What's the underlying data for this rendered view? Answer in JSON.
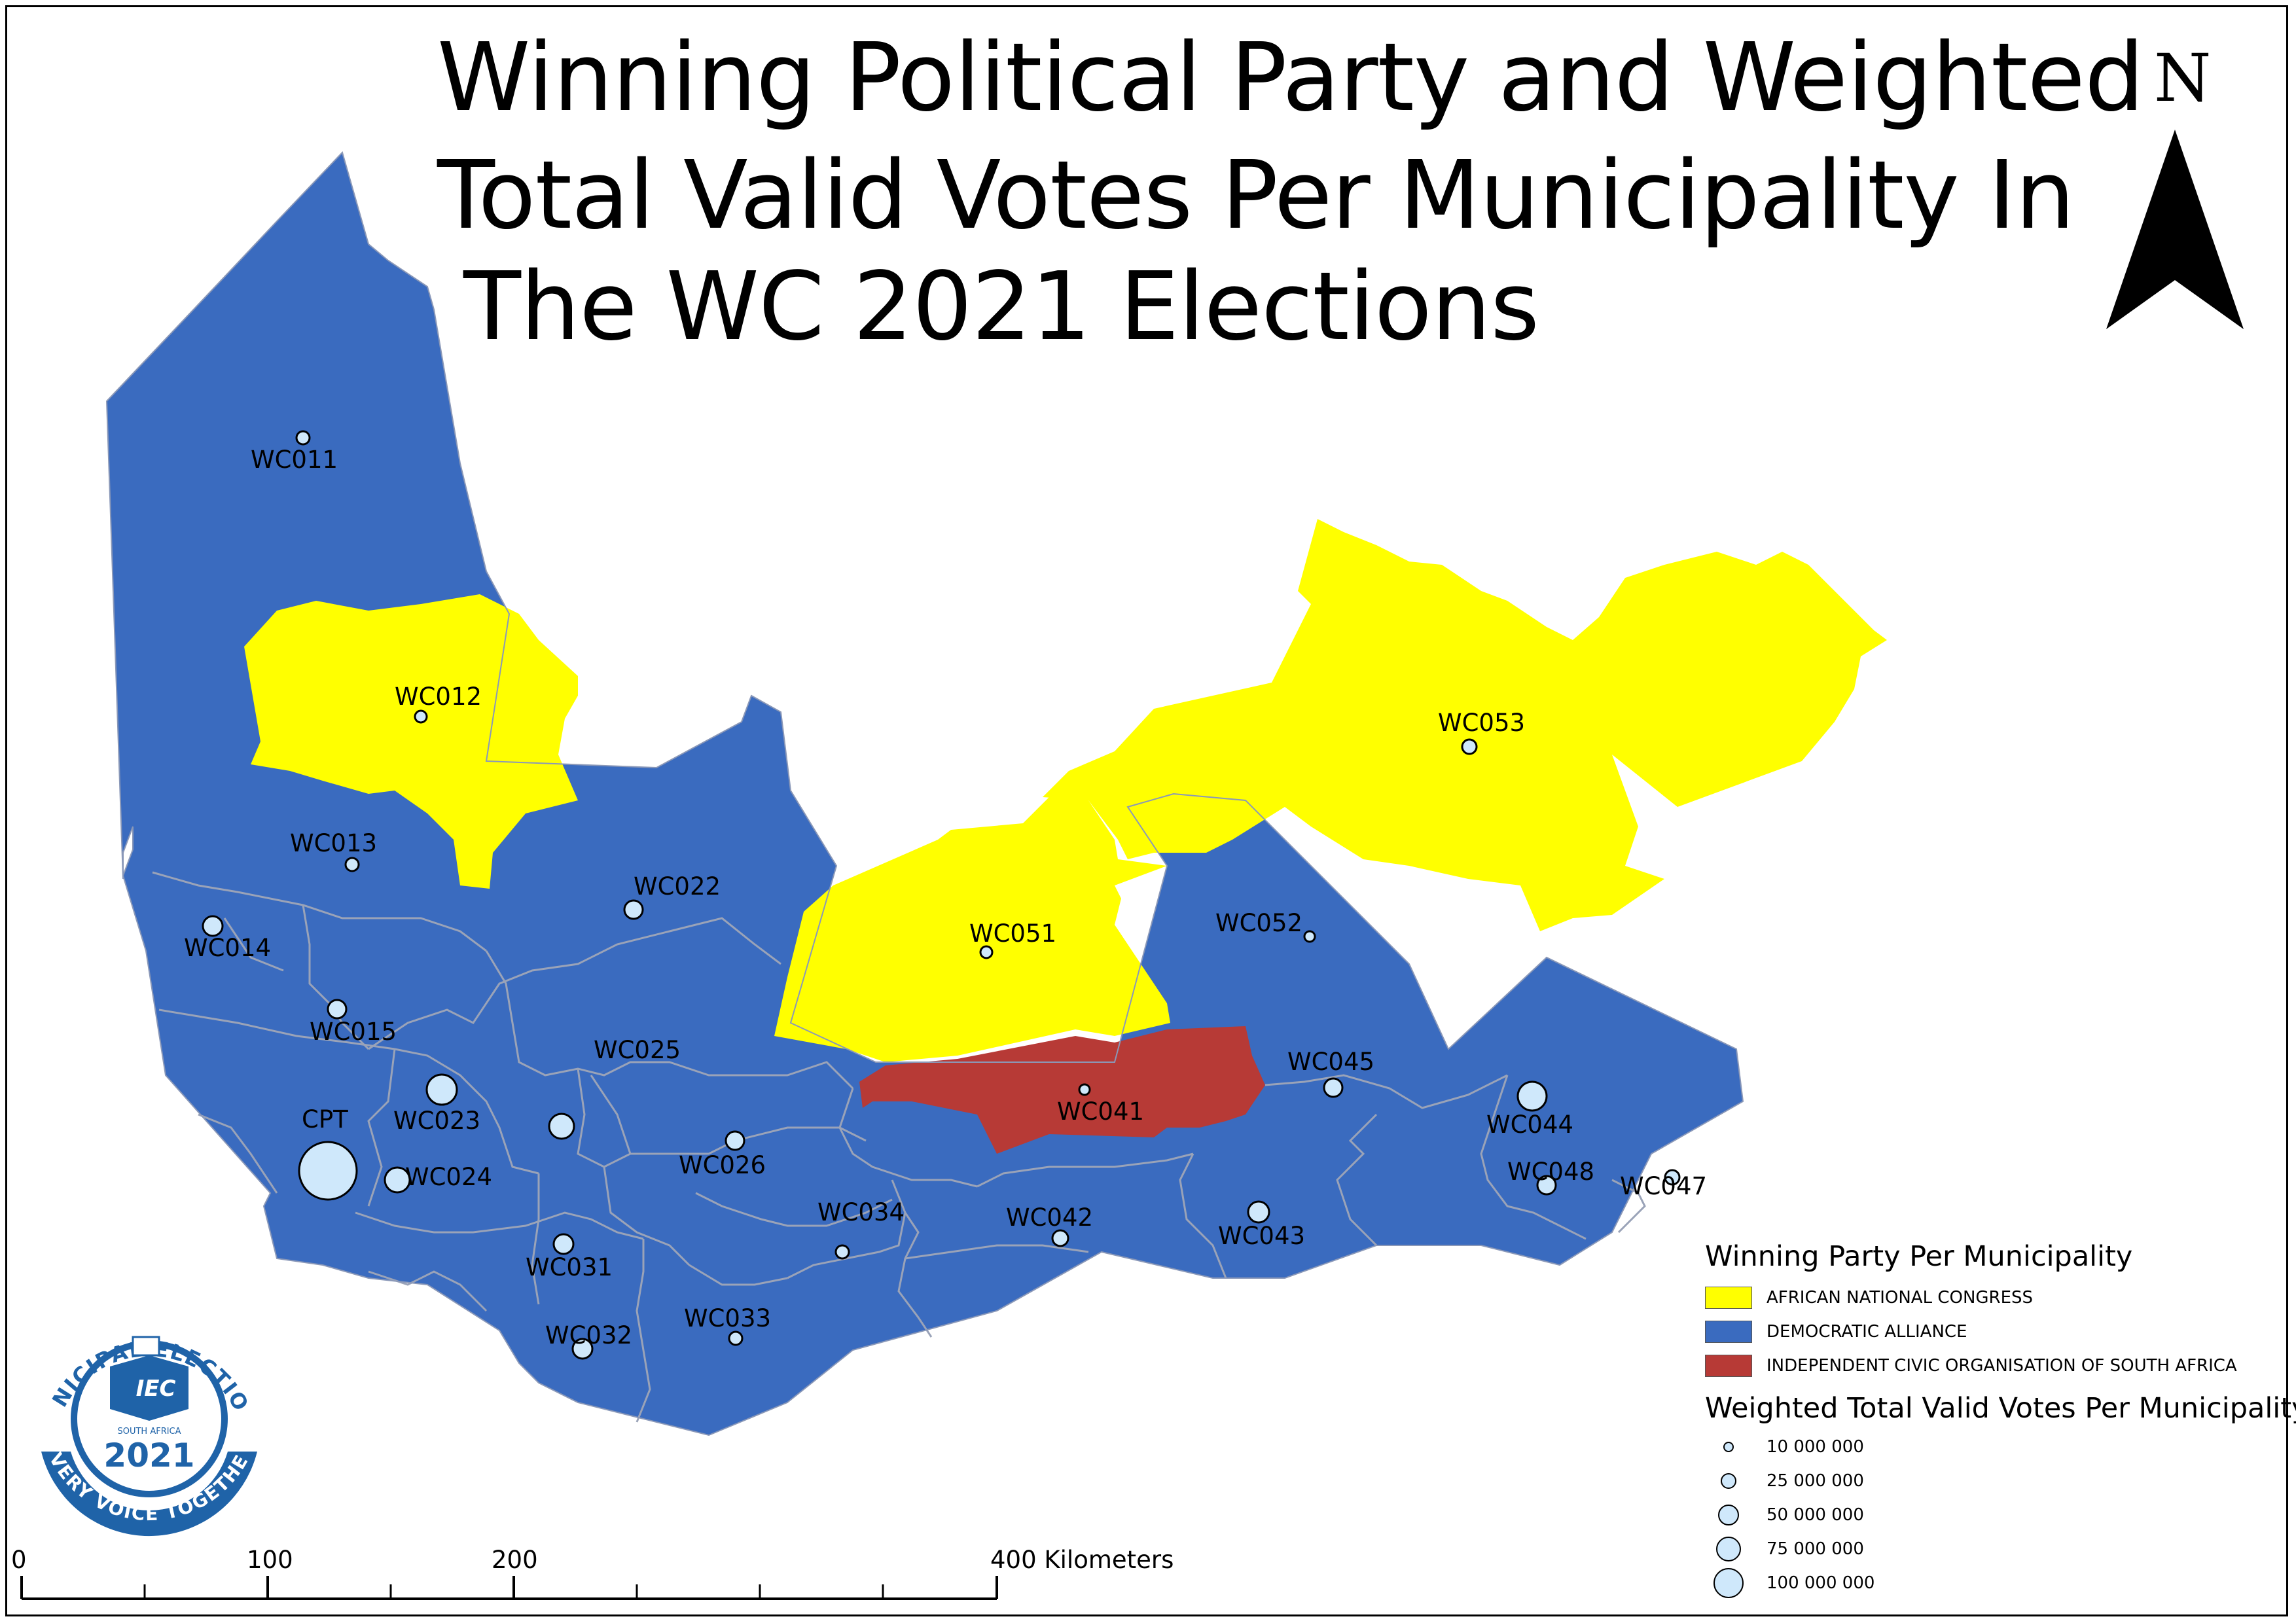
{
  "title": {
    "line1": "Winning Political Party and Weighted",
    "line2": "Total Valid Votes Per Municipality In",
    "line3": "The WC 2021 Elections"
  },
  "north_arrow": {
    "label": "N"
  },
  "colors": {
    "anc": "#ffff00",
    "da": "#3a6bbf",
    "icosa": "#b73a36",
    "boundary": "#9aa3b8",
    "bubble_fill": "#cfe8fb"
  },
  "municipalities": [
    {
      "code": "WC011",
      "party": "DEMOCRATIC ALLIANCE"
    },
    {
      "code": "WC012",
      "party": "AFRICAN NATIONAL CONGRESS"
    },
    {
      "code": "WC013",
      "party": "DEMOCRATIC ALLIANCE"
    },
    {
      "code": "WC014",
      "party": "DEMOCRATIC ALLIANCE"
    },
    {
      "code": "WC015",
      "party": "DEMOCRATIC ALLIANCE"
    },
    {
      "code": "CPT",
      "party": "DEMOCRATIC ALLIANCE"
    },
    {
      "code": "WC022",
      "party": "DEMOCRATIC ALLIANCE"
    },
    {
      "code": "WC023",
      "party": "DEMOCRATIC ALLIANCE"
    },
    {
      "code": "WC024",
      "party": "DEMOCRATIC ALLIANCE"
    },
    {
      "code": "WC025",
      "party": "DEMOCRATIC ALLIANCE"
    },
    {
      "code": "WC026",
      "party": "DEMOCRATIC ALLIANCE"
    },
    {
      "code": "WC031",
      "party": "DEMOCRATIC ALLIANCE"
    },
    {
      "code": "WC032",
      "party": "DEMOCRATIC ALLIANCE"
    },
    {
      "code": "WC033",
      "party": "DEMOCRATIC ALLIANCE"
    },
    {
      "code": "WC034",
      "party": "DEMOCRATIC ALLIANCE"
    },
    {
      "code": "WC041",
      "party": "INDEPENDENT CIVIC ORGANISATION OF SOUTH AFRICA"
    },
    {
      "code": "WC042",
      "party": "DEMOCRATIC ALLIANCE"
    },
    {
      "code": "WC043",
      "party": "DEMOCRATIC ALLIANCE"
    },
    {
      "code": "WC044",
      "party": "DEMOCRATIC ALLIANCE"
    },
    {
      "code": "WC045",
      "party": "DEMOCRATIC ALLIANCE"
    },
    {
      "code": "WC047",
      "party": "DEMOCRATIC ALLIANCE"
    },
    {
      "code": "WC048",
      "party": "DEMOCRATIC ALLIANCE"
    },
    {
      "code": "WC051",
      "party": "AFRICAN NATIONAL CONGRESS"
    },
    {
      "code": "WC052",
      "party": "DEMOCRATIC ALLIANCE"
    },
    {
      "code": "WC053",
      "party": "AFRICAN NATIONAL CONGRESS"
    }
  ],
  "legend": {
    "party_title": "Winning Party Per Municipality",
    "parties": [
      {
        "label": "AFRICAN NATIONAL CONGRESS",
        "color": "#ffff00"
      },
      {
        "label": "DEMOCRATIC ALLIANCE",
        "color": "#3a6bbf"
      },
      {
        "label": "INDEPENDENT CIVIC ORGANISATION OF SOUTH AFRICA",
        "color": "#b73a36"
      }
    ],
    "votes_title": "Weighted Total Valid Votes Per Municipality",
    "sizes": [
      {
        "label": "10 000 000",
        "value": 10000000
      },
      {
        "label": "25 000 000",
        "value": 25000000
      },
      {
        "label": "50 000 000",
        "value": 50000000
      },
      {
        "label": "75 000 000",
        "value": 75000000
      },
      {
        "label": "100 000 000",
        "value": 100000000
      }
    ]
  },
  "scale_bar": {
    "labels": [
      "0",
      "100",
      "200",
      "400 Kilometers"
    ]
  },
  "logo": {
    "top_text": "MUNICIPAL ELECTIONS",
    "badge": "IEC",
    "country": "SOUTH AFRICA",
    "year": "2021",
    "bottom_text": "EVERY VOICE TOGETHER"
  }
}
